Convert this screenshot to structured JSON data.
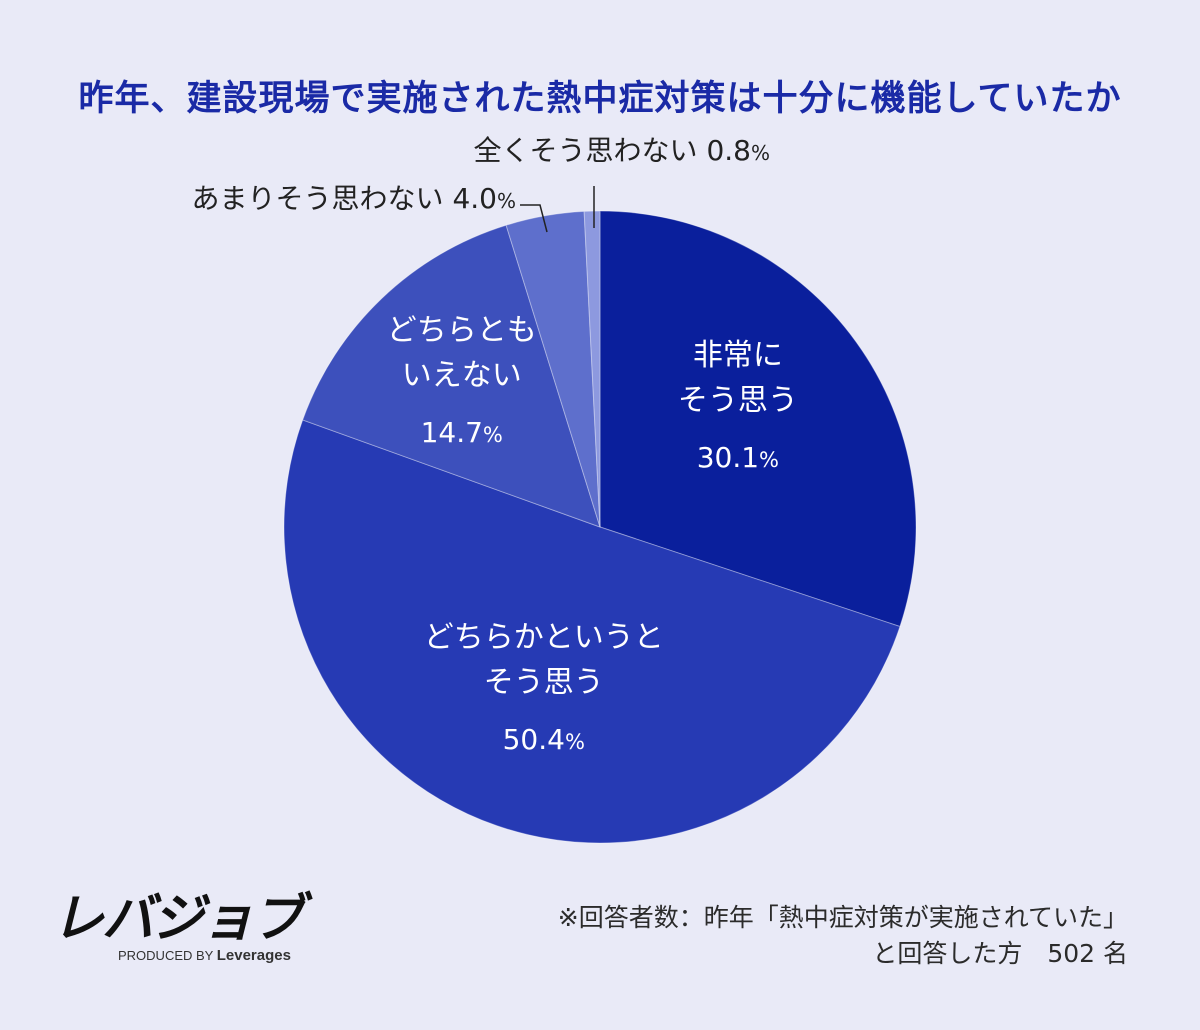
{
  "header": {
    "title": "昨年、建設現場で実施された熱中症対策は十分に機能していたか"
  },
  "chart_data": {
    "type": "pie",
    "title": "昨年、建設現場で実施された熱中症対策は十分に機能していたか",
    "slices": [
      {
        "label_lines": [
          "非常に",
          "そう思う"
        ],
        "value": 30.1,
        "value_text": "30.1",
        "color": "#0a1f9c"
      },
      {
        "label_lines": [
          "どちらかというと",
          "そう思う"
        ],
        "value": 50.4,
        "value_text": "50.4",
        "color": "#263ab4"
      },
      {
        "label_lines": [
          "どちらとも",
          "いえない"
        ],
        "value": 14.7,
        "value_text": "14.7",
        "color": "#3d50bc"
      },
      {
        "label_lines": [
          "あまりそう思わない"
        ],
        "value": 4.0,
        "value_text": "4.0",
        "color": "#5e6fcc"
      },
      {
        "label_lines": [
          "全くそう思わない"
        ],
        "value": 0.8,
        "value_text": "0.8",
        "color": "#8d99df"
      }
    ],
    "unit": "%"
  },
  "footer": {
    "logo_text": "レバジョブ",
    "logo_sub_prefix": "PRODUCED BY ",
    "logo_sub_brand": "Leverages",
    "note_line1": "※回答者数：昨年「熱中症対策が実施されていた」",
    "note_line2": "と回答した方　502 名"
  }
}
